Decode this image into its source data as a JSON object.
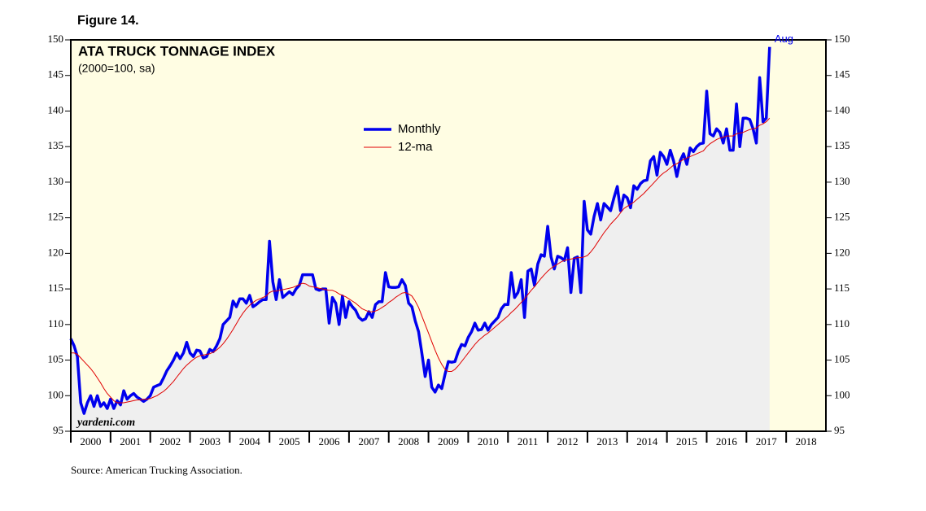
{
  "chart_data": {
    "type": "line",
    "figure_label": "Figure 14.",
    "title": "ATA TRUCK TONNAGE INDEX",
    "subtitle": "(2000=100, sa)",
    "annotation": "Aug",
    "watermark": "yardeni.com",
    "source": "Source: American Trucking Association.",
    "xlim": [
      2000,
      2019
    ],
    "xticks": [
      2000,
      2001,
      2002,
      2003,
      2004,
      2005,
      2006,
      2007,
      2008,
      2009,
      2010,
      2011,
      2012,
      2013,
      2014,
      2015,
      2016,
      2017,
      2018
    ],
    "ylim": [
      95,
      150
    ],
    "yticks": [
      95,
      100,
      105,
      110,
      115,
      120,
      125,
      130,
      135,
      140,
      145,
      150
    ],
    "x": [
      "2000-01",
      "2000-02",
      "2000-03",
      "2000-04",
      "2000-05",
      "2000-06",
      "2000-07",
      "2000-08",
      "2000-09",
      "2000-10",
      "2000-11",
      "2000-12",
      "2001-01",
      "2001-02",
      "2001-03",
      "2001-04",
      "2001-05",
      "2001-06",
      "2001-07",
      "2001-08",
      "2001-09",
      "2001-10",
      "2001-11",
      "2001-12",
      "2002-01",
      "2002-02",
      "2002-03",
      "2002-04",
      "2002-05",
      "2002-06",
      "2002-07",
      "2002-08",
      "2002-09",
      "2002-10",
      "2002-11",
      "2002-12",
      "2003-01",
      "2003-02",
      "2003-03",
      "2003-04",
      "2003-05",
      "2003-06",
      "2003-07",
      "2003-08",
      "2003-09",
      "2003-10",
      "2003-11",
      "2003-12",
      "2004-01",
      "2004-02",
      "2004-03",
      "2004-04",
      "2004-05",
      "2004-06",
      "2004-07",
      "2004-08",
      "2004-09",
      "2004-10",
      "2004-11",
      "2004-12",
      "2005-01",
      "2005-02",
      "2005-03",
      "2005-04",
      "2005-05",
      "2005-06",
      "2005-07",
      "2005-08",
      "2005-09",
      "2005-10",
      "2005-11",
      "2005-12",
      "2006-01",
      "2006-02",
      "2006-03",
      "2006-04",
      "2006-05",
      "2006-06",
      "2006-07",
      "2006-08",
      "2006-09",
      "2006-10",
      "2006-11",
      "2006-12",
      "2007-01",
      "2007-02",
      "2007-03",
      "2007-04",
      "2007-05",
      "2007-06",
      "2007-07",
      "2007-08",
      "2007-09",
      "2007-10",
      "2007-11",
      "2007-12",
      "2008-01",
      "2008-02",
      "2008-03",
      "2008-04",
      "2008-05",
      "2008-06",
      "2008-07",
      "2008-08",
      "2008-09",
      "2008-10",
      "2008-11",
      "2008-12",
      "2009-01",
      "2009-02",
      "2009-03",
      "2009-04",
      "2009-05",
      "2009-06",
      "2009-07",
      "2009-08",
      "2009-09",
      "2009-10",
      "2009-11",
      "2009-12",
      "2010-01",
      "2010-02",
      "2010-03",
      "2010-04",
      "2010-05",
      "2010-06",
      "2010-07",
      "2010-08",
      "2010-09",
      "2010-10",
      "2010-11",
      "2010-12",
      "2011-01",
      "2011-02",
      "2011-03",
      "2011-04",
      "2011-05",
      "2011-06",
      "2011-07",
      "2011-08",
      "2011-09",
      "2011-10",
      "2011-11",
      "2011-12",
      "2012-01",
      "2012-02",
      "2012-03",
      "2012-04",
      "2012-05",
      "2012-06",
      "2012-07",
      "2012-08",
      "2012-09",
      "2012-10",
      "2012-11",
      "2012-12",
      "2013-01",
      "2013-02",
      "2013-03",
      "2013-04",
      "2013-05",
      "2013-06",
      "2013-07",
      "2013-08",
      "2013-09",
      "2013-10",
      "2013-11",
      "2013-12",
      "2014-01",
      "2014-02",
      "2014-03",
      "2014-04",
      "2014-05",
      "2014-06",
      "2014-07",
      "2014-08",
      "2014-09",
      "2014-10",
      "2014-11",
      "2014-12",
      "2015-01",
      "2015-02",
      "2015-03",
      "2015-04",
      "2015-05",
      "2015-06",
      "2015-07",
      "2015-08",
      "2015-09",
      "2015-10",
      "2015-11",
      "2015-12",
      "2016-01",
      "2016-02",
      "2016-03",
      "2016-04",
      "2016-05",
      "2016-06",
      "2016-07",
      "2016-08",
      "2016-09",
      "2016-10",
      "2016-11",
      "2016-12",
      "2017-01",
      "2017-02",
      "2017-03",
      "2017-04",
      "2017-05",
      "2017-06",
      "2017-07",
      "2017-08"
    ],
    "series": [
      {
        "name": "Monthly",
        "color": "#0000ee",
        "fill": "#efefef",
        "width": 3.5,
        "values": [
          108,
          107,
          105.5,
          99,
          97.5,
          99,
          100,
          98.5,
          100,
          98.5,
          99,
          98.2,
          99.5,
          98.2,
          99.3,
          98.7,
          100.7,
          99.5,
          100,
          100.3,
          99.8,
          99.5,
          99.2,
          99.5,
          100,
          101.2,
          101.4,
          101.6,
          102.5,
          103.5,
          104.2,
          105,
          106,
          105.2,
          106,
          107.5,
          106,
          105.5,
          106.4,
          106.3,
          105.3,
          105.5,
          106.5,
          106.2,
          107,
          108,
          110,
          110.5,
          111,
          113.3,
          112.5,
          113.6,
          113.6,
          113,
          114.1,
          112.5,
          112.8,
          113.2,
          113.5,
          113.5,
          121.7,
          116,
          113.5,
          116.3,
          113.8,
          114.2,
          114.6,
          114.2,
          115,
          115.5,
          117,
          117,
          117,
          117,
          115,
          114.8,
          115,
          115,
          110.2,
          113.8,
          113,
          110,
          114,
          111,
          113.2,
          112.5,
          112,
          111,
          110.6,
          110.8,
          111.8,
          111,
          112.8,
          113.2,
          113.2,
          117.3,
          115.3,
          115.2,
          115.2,
          115.3,
          116.3,
          115.5,
          113,
          112.5,
          110.5,
          109,
          106,
          102.7,
          105,
          101.2,
          100.5,
          101.5,
          101,
          103,
          104.8,
          104.7,
          104.8,
          106.2,
          107.2,
          107,
          108.2,
          109,
          110.2,
          109.2,
          109.3,
          110.2,
          109.2,
          110,
          110.5,
          111,
          112.2,
          112.8,
          112.8,
          117.3,
          113.8,
          114.5,
          116.3,
          111,
          117.5,
          117.8,
          115.5,
          118.5,
          119.8,
          119.6,
          123.8,
          119.5,
          117.8,
          119.6,
          119.4,
          119,
          120.8,
          114.5,
          119.3,
          119.5,
          114.5,
          127.3,
          123.3,
          122.7,
          125.2,
          127,
          124.7,
          127,
          126.5,
          126,
          127.8,
          129.4,
          126,
          128.2,
          127.8,
          126.4,
          129.5,
          129,
          129.8,
          130.2,
          130.3,
          133,
          133.6,
          131,
          134.2,
          133.6,
          132.5,
          134.5,
          133,
          130.8,
          133,
          134,
          132.5,
          134.8,
          134.3,
          135,
          135.4,
          135.5,
          142.8,
          136.8,
          136.5,
          137.5,
          137,
          135.5,
          137.5,
          134.5,
          134.5,
          141,
          135,
          139,
          139,
          138.8,
          137.5,
          135.5,
          144.7,
          138.5,
          139,
          149
        ]
      },
      {
        "name": "12-ma",
        "color": "#e00000",
        "width": 1,
        "values": [
          106,
          106,
          105.8,
          105.3,
          104.8,
          104.3,
          103.8,
          103.2,
          102.5,
          101.8,
          101,
          100.3,
          99.8,
          99.3,
          99,
          99,
          99,
          99.1,
          99.2,
          99.3,
          99.4,
          99.4,
          99.5,
          99.5,
          99.6,
          99.8,
          100,
          100.3,
          100.6,
          101,
          101.5,
          102,
          102.6,
          103.2,
          103.8,
          104.3,
          104.7,
          105.1,
          105.4,
          105.6,
          105.7,
          105.8,
          105.9,
          106.1,
          106.4,
          106.8,
          107.3,
          107.9,
          108.6,
          109.3,
          110.1,
          110.9,
          111.6,
          112.2,
          112.7,
          113.1,
          113.4,
          113.6,
          113.8,
          114,
          114.5,
          114.7,
          114.7,
          114.8,
          114.9,
          115,
          115.1,
          115.2,
          115.4,
          115.6,
          115.8,
          115.7,
          115.4,
          115.3,
          115.2,
          115.1,
          115,
          114.9,
          114.8,
          114.8,
          114.6,
          114.3,
          114.1,
          113.9,
          113.6,
          113.3,
          113,
          112.6,
          112.2,
          112,
          111.8,
          111.8,
          111.9,
          112.1,
          112.4,
          112.7,
          113.1,
          113.4,
          113.8,
          114.1,
          114.4,
          114.5,
          114.3,
          114,
          113.3,
          112.4,
          111.2,
          110,
          108.8,
          107.6,
          106.4,
          105.3,
          104.4,
          103.7,
          103.4,
          103.4,
          103.7,
          104.2,
          104.8,
          105.4,
          106,
          106.6,
          107.2,
          107.7,
          108.1,
          108.5,
          108.8,
          109.2,
          109.6,
          110,
          110.4,
          110.8,
          111.2,
          111.7,
          112.1,
          112.6,
          113.1,
          113.6,
          114.2,
          114.8,
          115.3,
          115.9,
          116.5,
          117,
          117.5,
          117.9,
          118.2,
          118.5,
          118.8,
          119,
          119.1,
          119.2,
          119.3,
          119.4,
          119.4,
          119.5,
          119.7,
          120.2,
          120.8,
          121.5,
          122.2,
          122.9,
          123.5,
          124.1,
          124.6,
          125.1,
          125.7,
          126.3,
          126.6,
          126.9,
          127.2,
          127.6,
          128,
          128.4,
          128.9,
          129.4,
          129.9,
          130.4,
          130.9,
          131.3,
          131.6,
          132,
          132.4,
          132.6,
          132.9,
          133.2,
          133.4,
          133.6,
          133.8,
          134,
          134.2,
          134.4,
          135,
          135.4,
          135.7,
          136,
          136.2,
          136.3,
          136.5,
          136.5,
          136.5,
          136.8,
          136.9,
          137,
          137.2,
          137.4,
          137.5,
          137.6,
          138,
          138.2,
          138.5,
          139
        ]
      }
    ],
    "plot_background": "#fffde3"
  }
}
